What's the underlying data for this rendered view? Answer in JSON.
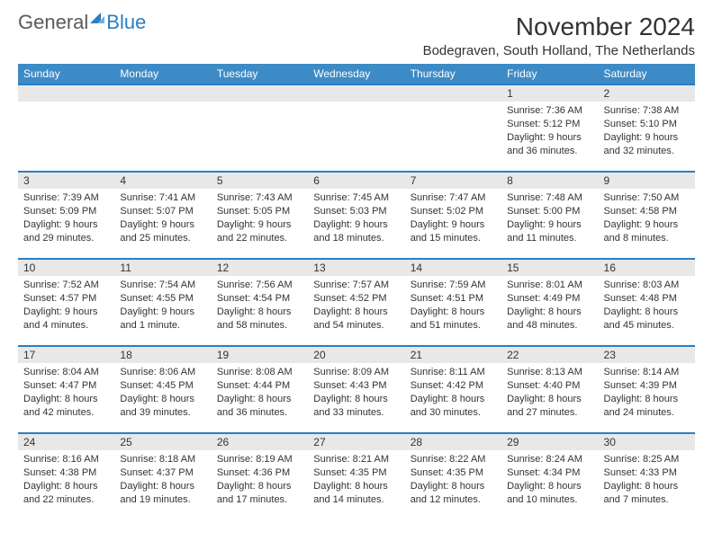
{
  "brand": {
    "part1": "General",
    "part2": "Blue"
  },
  "title": "November 2024",
  "location": "Bodegraven, South Holland, The Netherlands",
  "colors": {
    "header_bg": "#3d8bc6",
    "accent": "#2b7ec1",
    "daynum_bg": "#e8e8e8",
    "text": "#333333",
    "logo_gray": "#5a5a5a"
  },
  "weekdays": [
    "Sunday",
    "Monday",
    "Tuesday",
    "Wednesday",
    "Thursday",
    "Friday",
    "Saturday"
  ],
  "weeks": [
    [
      null,
      null,
      null,
      null,
      null,
      {
        "n": "1",
        "sr": "7:36 AM",
        "ss": "5:12 PM",
        "dl": "9 hours and 36 minutes."
      },
      {
        "n": "2",
        "sr": "7:38 AM",
        "ss": "5:10 PM",
        "dl": "9 hours and 32 minutes."
      }
    ],
    [
      {
        "n": "3",
        "sr": "7:39 AM",
        "ss": "5:09 PM",
        "dl": "9 hours and 29 minutes."
      },
      {
        "n": "4",
        "sr": "7:41 AM",
        "ss": "5:07 PM",
        "dl": "9 hours and 25 minutes."
      },
      {
        "n": "5",
        "sr": "7:43 AM",
        "ss": "5:05 PM",
        "dl": "9 hours and 22 minutes."
      },
      {
        "n": "6",
        "sr": "7:45 AM",
        "ss": "5:03 PM",
        "dl": "9 hours and 18 minutes."
      },
      {
        "n": "7",
        "sr": "7:47 AM",
        "ss": "5:02 PM",
        "dl": "9 hours and 15 minutes."
      },
      {
        "n": "8",
        "sr": "7:48 AM",
        "ss": "5:00 PM",
        "dl": "9 hours and 11 minutes."
      },
      {
        "n": "9",
        "sr": "7:50 AM",
        "ss": "4:58 PM",
        "dl": "9 hours and 8 minutes."
      }
    ],
    [
      {
        "n": "10",
        "sr": "7:52 AM",
        "ss": "4:57 PM",
        "dl": "9 hours and 4 minutes."
      },
      {
        "n": "11",
        "sr": "7:54 AM",
        "ss": "4:55 PM",
        "dl": "9 hours and 1 minute."
      },
      {
        "n": "12",
        "sr": "7:56 AM",
        "ss": "4:54 PM",
        "dl": "8 hours and 58 minutes."
      },
      {
        "n": "13",
        "sr": "7:57 AM",
        "ss": "4:52 PM",
        "dl": "8 hours and 54 minutes."
      },
      {
        "n": "14",
        "sr": "7:59 AM",
        "ss": "4:51 PM",
        "dl": "8 hours and 51 minutes."
      },
      {
        "n": "15",
        "sr": "8:01 AM",
        "ss": "4:49 PM",
        "dl": "8 hours and 48 minutes."
      },
      {
        "n": "16",
        "sr": "8:03 AM",
        "ss": "4:48 PM",
        "dl": "8 hours and 45 minutes."
      }
    ],
    [
      {
        "n": "17",
        "sr": "8:04 AM",
        "ss": "4:47 PM",
        "dl": "8 hours and 42 minutes."
      },
      {
        "n": "18",
        "sr": "8:06 AM",
        "ss": "4:45 PM",
        "dl": "8 hours and 39 minutes."
      },
      {
        "n": "19",
        "sr": "8:08 AM",
        "ss": "4:44 PM",
        "dl": "8 hours and 36 minutes."
      },
      {
        "n": "20",
        "sr": "8:09 AM",
        "ss": "4:43 PM",
        "dl": "8 hours and 33 minutes."
      },
      {
        "n": "21",
        "sr": "8:11 AM",
        "ss": "4:42 PM",
        "dl": "8 hours and 30 minutes."
      },
      {
        "n": "22",
        "sr": "8:13 AM",
        "ss": "4:40 PM",
        "dl": "8 hours and 27 minutes."
      },
      {
        "n": "23",
        "sr": "8:14 AM",
        "ss": "4:39 PM",
        "dl": "8 hours and 24 minutes."
      }
    ],
    [
      {
        "n": "24",
        "sr": "8:16 AM",
        "ss": "4:38 PM",
        "dl": "8 hours and 22 minutes."
      },
      {
        "n": "25",
        "sr": "8:18 AM",
        "ss": "4:37 PM",
        "dl": "8 hours and 19 minutes."
      },
      {
        "n": "26",
        "sr": "8:19 AM",
        "ss": "4:36 PM",
        "dl": "8 hours and 17 minutes."
      },
      {
        "n": "27",
        "sr": "8:21 AM",
        "ss": "4:35 PM",
        "dl": "8 hours and 14 minutes."
      },
      {
        "n": "28",
        "sr": "8:22 AM",
        "ss": "4:35 PM",
        "dl": "8 hours and 12 minutes."
      },
      {
        "n": "29",
        "sr": "8:24 AM",
        "ss": "4:34 PM",
        "dl": "8 hours and 10 minutes."
      },
      {
        "n": "30",
        "sr": "8:25 AM",
        "ss": "4:33 PM",
        "dl": "8 hours and 7 minutes."
      }
    ]
  ],
  "labels": {
    "sunrise": "Sunrise: ",
    "sunset": "Sunset: ",
    "daylight": "Daylight: "
  }
}
